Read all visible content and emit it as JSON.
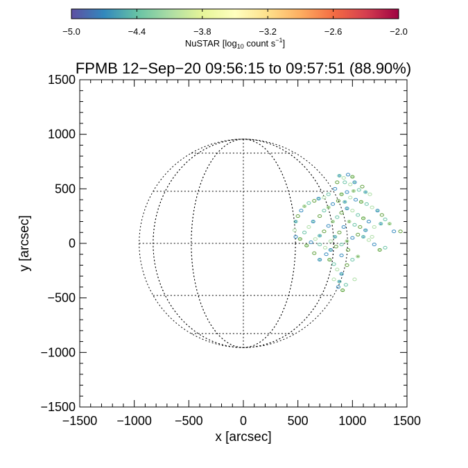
{
  "colorbar": {
    "label_main": "NuSTAR [log",
    "label_sub": "10",
    "label_rest": " count s",
    "label_sup": "−1",
    "label_close": "]",
    "ticks": [
      {
        "value": -5.0,
        "label": "−5.0"
      },
      {
        "value": -4.4,
        "label": "−4.4"
      },
      {
        "value": -3.8,
        "label": "−3.8"
      },
      {
        "value": -3.2,
        "label": "−3.2"
      },
      {
        "value": -2.6,
        "label": "−2.6"
      },
      {
        "value": -2.0,
        "label": "−2.0"
      }
    ],
    "range": [
      -5.0,
      -2.0
    ],
    "colormap": [
      "#5e4fa2",
      "#3288bd",
      "#66c2a5",
      "#abdda4",
      "#e6f598",
      "#ffffbf",
      "#fee08b",
      "#fdae61",
      "#f46d43",
      "#d53e4f",
      "#9e0142"
    ]
  },
  "chart_data": {
    "type": "scatter",
    "title": "FPMB 12−Sep−20 09:56:15 to 09:57:51 (88.90%)",
    "xlabel": "x [arcsec]",
    "ylabel": "y [arcsec]",
    "xlim": [
      -1500,
      1500
    ],
    "ylim": [
      -1500,
      1500
    ],
    "x_ticks": [
      {
        "value": -1500,
        "label": "−1500"
      },
      {
        "value": -1000,
        "label": "−1000"
      },
      {
        "value": -500,
        "label": "−500"
      },
      {
        "value": 0,
        "label": "0"
      },
      {
        "value": 500,
        "label": "500"
      },
      {
        "value": 1000,
        "label": "1000"
      },
      {
        "value": 1500,
        "label": "1500"
      }
    ],
    "y_ticks": [
      {
        "value": -1500,
        "label": "−1500"
      },
      {
        "value": -1000,
        "label": "−1000"
      },
      {
        "value": -500,
        "label": "−500"
      },
      {
        "value": 0,
        "label": "0"
      },
      {
        "value": 500,
        "label": "500"
      },
      {
        "value": 1000,
        "label": "1000"
      },
      {
        "value": 1500,
        "label": "1500"
      }
    ],
    "solar_disk": {
      "center": [
        0,
        0
      ],
      "radius": 955
    },
    "grid_latitudes": [
      -60,
      -30,
      0,
      30,
      60
    ],
    "grid_longitudes": [
      -60,
      -30,
      0,
      30,
      60
    ],
    "contour_colors": [
      "#66c2a5",
      "#abdda4",
      "#3288bd",
      "#5e9e3a"
    ],
    "points": [
      [
        880,
        620
      ],
      [
        920,
        600
      ],
      [
        960,
        630
      ],
      [
        1000,
        610
      ],
      [
        930,
        560
      ],
      [
        980,
        540
      ],
      [
        1020,
        560
      ],
      [
        860,
        560
      ],
      [
        1060,
        490
      ],
      [
        1010,
        480
      ],
      [
        950,
        470
      ],
      [
        1090,
        520
      ],
      [
        1120,
        470
      ],
      [
        1160,
        450
      ],
      [
        840,
        500
      ],
      [
        900,
        450
      ],
      [
        780,
        450
      ],
      [
        740,
        420
      ],
      [
        690,
        410
      ],
      [
        650,
        390
      ],
      [
        600,
        370
      ],
      [
        560,
        340
      ],
      [
        530,
        300
      ],
      [
        500,
        250
      ],
      [
        480,
        200
      ],
      [
        470,
        120
      ],
      [
        480,
        60
      ],
      [
        520,
        40
      ],
      [
        560,
        100
      ],
      [
        600,
        150
      ],
      [
        640,
        200
      ],
      [
        700,
        250
      ],
      [
        740,
        300
      ],
      [
        780,
        330
      ],
      [
        820,
        360
      ],
      [
        870,
        390
      ],
      [
        930,
        380
      ],
      [
        980,
        420
      ],
      [
        1030,
        400
      ],
      [
        1080,
        380
      ],
      [
        1130,
        360
      ],
      [
        1180,
        330
      ],
      [
        1230,
        300
      ],
      [
        1270,
        260
      ],
      [
        1300,
        220
      ],
      [
        1340,
        180
      ],
      [
        1380,
        110
      ],
      [
        1440,
        110
      ],
      [
        1260,
        180
      ],
      [
        1200,
        150
      ],
      [
        1150,
        200
      ],
      [
        1100,
        230
      ],
      [
        1050,
        260
      ],
      [
        1000,
        300
      ],
      [
        950,
        320
      ],
      [
        900,
        280
      ],
      [
        860,
        240
      ],
      [
        820,
        200
      ],
      [
        780,
        160
      ],
      [
        740,
        110
      ],
      [
        700,
        70
      ],
      [
        660,
        40
      ],
      [
        620,
        10
      ],
      [
        580,
        -20
      ],
      [
        700,
        -10
      ],
      [
        750,
        -40
      ],
      [
        800,
        -60
      ],
      [
        850,
        -30
      ],
      [
        900,
        -10
      ],
      [
        950,
        20
      ],
      [
        1000,
        50
      ],
      [
        1050,
        80
      ],
      [
        1100,
        60
      ],
      [
        1150,
        30
      ],
      [
        1200,
        -10
      ],
      [
        1250,
        -60
      ],
      [
        1300,
        -40
      ],
      [
        1180,
        60
      ],
      [
        1120,
        120
      ],
      [
        1070,
        150
      ],
      [
        1020,
        170
      ],
      [
        970,
        200
      ],
      [
        920,
        150
      ],
      [
        880,
        100
      ],
      [
        840,
        60
      ],
      [
        800,
        20
      ],
      [
        760,
        -100
      ],
      [
        790,
        -150
      ],
      [
        830,
        -190
      ],
      [
        860,
        -240
      ],
      [
        900,
        -280
      ],
      [
        950,
        -200
      ],
      [
        1000,
        -150
      ],
      [
        1050,
        -120
      ],
      [
        900,
        -110
      ],
      [
        960,
        -60
      ],
      [
        880,
        -350
      ],
      [
        830,
        -330
      ],
      [
        870,
        -400
      ],
      [
        910,
        -430
      ],
      [
        940,
        -380
      ],
      [
        1020,
        -330
      ],
      [
        700,
        -150
      ],
      [
        650,
        -90
      ]
    ]
  }
}
